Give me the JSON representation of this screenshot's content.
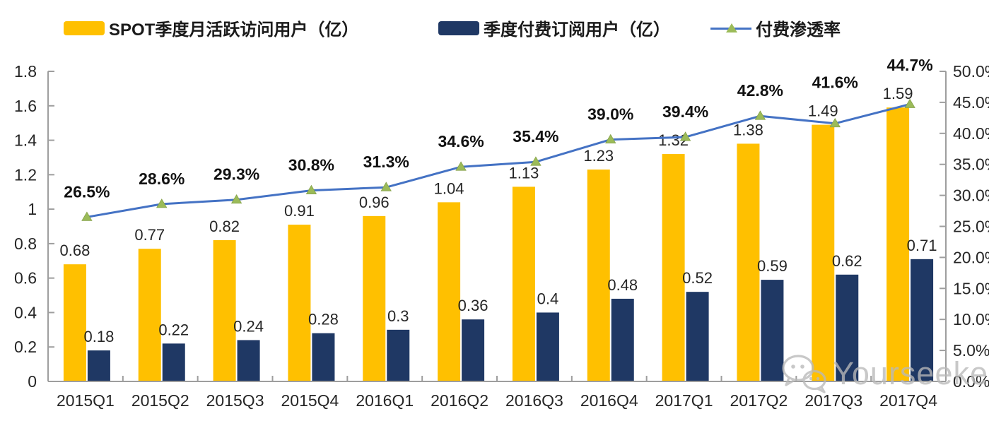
{
  "legend": [
    {
      "label": "SPOT季度月活跃访问用户（亿）",
      "swatch": "bar",
      "color": "#FFC000"
    },
    {
      "label": "季度付费订阅用户（亿）",
      "swatch": "bar",
      "color": "#1F3864"
    },
    {
      "label": "付费渗透率",
      "swatch": "line",
      "color": "#4472C4",
      "marker_color": "#9BBB59"
    }
  ],
  "chart_data": {
    "type": "bar+line combo",
    "grid": false,
    "legend_position": "top",
    "categories": [
      "2015Q1",
      "2015Q2",
      "2015Q3",
      "2015Q4",
      "2016Q1",
      "2016Q2",
      "2016Q3",
      "2016Q4",
      "2017Q1",
      "2017Q2",
      "2017Q3",
      "2017Q4"
    ],
    "series": [
      {
        "name": "SPOT季度月活跃访问用户（亿）",
        "type": "bar",
        "axis": "left",
        "color": "#FFC000",
        "values": [
          0.68,
          0.77,
          0.82,
          0.91,
          0.96,
          1.04,
          1.13,
          1.23,
          1.32,
          1.38,
          1.49,
          1.59
        ],
        "labels": [
          "0.68",
          "0.77",
          "0.82",
          "0.91",
          "0.96",
          "1.04",
          "1.13",
          "1.23",
          "1.32",
          "1.38",
          "1.49",
          "1.59"
        ]
      },
      {
        "name": "季度付费订阅用户（亿）",
        "type": "bar",
        "axis": "left",
        "color": "#1F3864",
        "values": [
          0.18,
          0.22,
          0.24,
          0.28,
          0.3,
          0.36,
          0.4,
          0.48,
          0.52,
          0.59,
          0.62,
          0.71
        ],
        "labels": [
          "0.18",
          "0.22",
          "0.24",
          "0.28",
          "0.3",
          "0.36",
          "0.4",
          "0.48",
          "0.52",
          "0.59",
          "0.62",
          "0.71"
        ]
      },
      {
        "name": "付费渗透率",
        "type": "line",
        "axis": "right",
        "color": "#4472C4",
        "marker": "triangle",
        "marker_color": "#9BBB59",
        "values": [
          26.5,
          28.6,
          29.3,
          30.8,
          31.3,
          34.6,
          35.4,
          39.0,
          39.4,
          42.8,
          41.6,
          44.7
        ],
        "labels": [
          "26.5%",
          "28.6%",
          "29.3%",
          "30.8%",
          "31.3%",
          "34.6%",
          "35.4%",
          "39.0%",
          "39.4%",
          "42.8%",
          "41.6%",
          "44.7%"
        ]
      }
    ],
    "left_axis": {
      "min": 0,
      "max": 1.8,
      "tick_labels": [
        "0",
        "0.2",
        "0.4",
        "0.6",
        "0.8",
        "1",
        "1.2",
        "1.4",
        "1.6",
        "1.8"
      ]
    },
    "right_axis": {
      "min": 0,
      "max": 50,
      "tick_labels": [
        "0.0%",
        "5.0%",
        "10.0%",
        "15.0%",
        "20.0%",
        "25.0%",
        "30.0%",
        "35.0%",
        "40.0%",
        "45.0%",
        "50.0%"
      ]
    },
    "axis_color": "#9e9e9e",
    "label_color": "#262626"
  },
  "watermark": {
    "text": "Yourseeker",
    "icon": "wechat-icon"
  }
}
